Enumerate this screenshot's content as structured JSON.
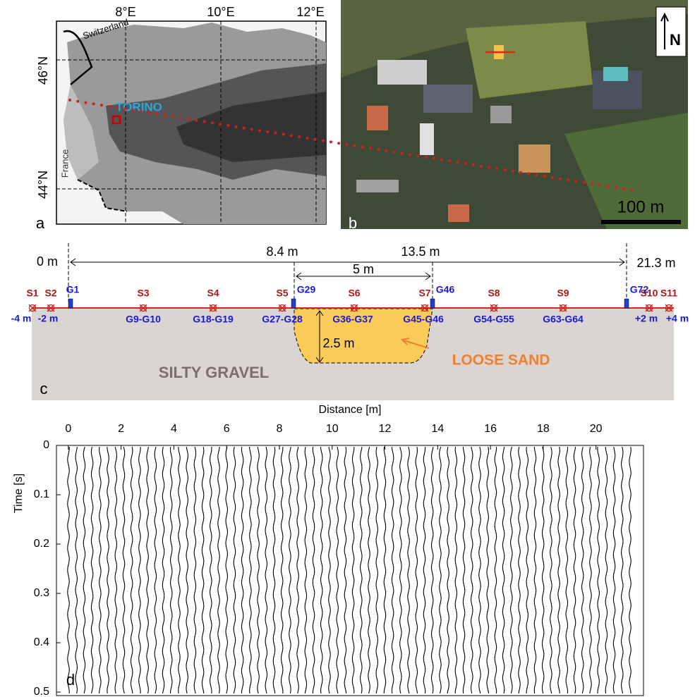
{
  "panel_a": {
    "label": "a",
    "lon_labels": [
      "8°E",
      "10°E",
      "12°E"
    ],
    "lat_labels": [
      "46°N",
      "44°N"
    ],
    "country_labels": [
      "Switzerland",
      "France"
    ],
    "city": "TORINO"
  },
  "panel_b": {
    "label": "b",
    "north": "N",
    "scale_bar": "100 m"
  },
  "panel_c": {
    "label": "c",
    "distances": [
      "0 m",
      "8.4 m",
      "13.5 m",
      "21.3 m"
    ],
    "width_label": "5 m",
    "depth_label": "2.5 m",
    "sand_label": "LOOSE SAND",
    "gravel_label": "SILTY GRAVEL",
    "sources": [
      "S1",
      "S2",
      "S3",
      "S4",
      "S5",
      "S6",
      "S7",
      "S8",
      "S9",
      "S10",
      "S11"
    ],
    "geophones": [
      "G1",
      "G29",
      "G46",
      "G72"
    ],
    "bottom_labels": [
      "-4 m",
      "-2 m",
      "G9-G10",
      "G18-G19",
      "G27-G28",
      "G36-G37",
      "G45-G46",
      "G54-G55",
      "G63-G64",
      "+2 m",
      "+4 m"
    ]
  },
  "panel_d": {
    "label": "d",
    "xlabel": "Distance [m]",
    "ylabel": "Time [s]",
    "xlim": [
      -0.45,
      21.8
    ],
    "ylim": [
      0,
      0.51
    ],
    "xticks": [
      0,
      2,
      4,
      6,
      8,
      10,
      12,
      14,
      16,
      18,
      20
    ],
    "yticks": [
      0,
      0.1,
      0.2,
      0.3,
      0.4,
      0.5
    ]
  }
}
